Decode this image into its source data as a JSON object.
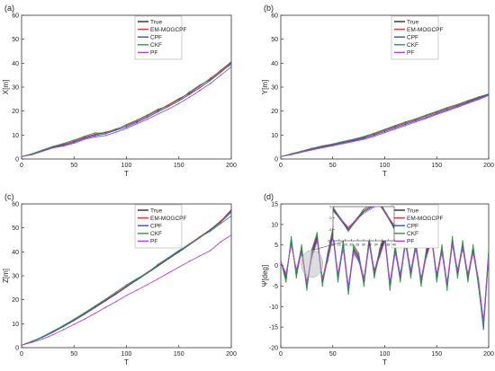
{
  "colors": {
    "True": "#2b2b2b",
    "EM-MOGCPF": "#e8303a",
    "CPF": "#2a55c8",
    "CKF": "#2e9a4a",
    "PF": "#b040e0"
  },
  "chart_data": [
    {
      "panel": "(a)",
      "type": "line",
      "xlabel": "T",
      "ylabel": "X[m]",
      "xlim": [
        0,
        200
      ],
      "ylim": [
        0,
        60
      ],
      "xticks": [
        0,
        50,
        100,
        150,
        200
      ],
      "yticks": [
        0,
        10,
        20,
        30,
        40,
        50,
        60
      ],
      "legend": "top-right",
      "x": [
        0,
        10,
        20,
        30,
        40,
        50,
        60,
        70,
        80,
        90,
        100,
        110,
        120,
        130,
        140,
        150,
        160,
        170,
        180,
        190,
        200
      ],
      "series": [
        {
          "name": "True",
          "values": [
            1,
            2,
            3.5,
            5,
            6,
            7.5,
            9,
            10.2,
            11,
            12.5,
            14,
            15.8,
            18,
            20.2,
            22.5,
            25,
            27.5,
            30.5,
            33.5,
            37,
            40.5
          ]
        },
        {
          "name": "EM-MOGCPF",
          "values": [
            1,
            2.1,
            3.6,
            5.1,
            6.2,
            7.4,
            9.1,
            10.3,
            11.2,
            12.3,
            14.1,
            15.9,
            17.9,
            20.4,
            22.6,
            25.2,
            27.3,
            30.4,
            33.7,
            36.8,
            40.2
          ]
        },
        {
          "name": "CPF",
          "values": [
            1,
            1.9,
            3.3,
            4.8,
            5.6,
            7,
            8.6,
            9.7,
            10.5,
            12,
            13.4,
            15.3,
            17.4,
            19.7,
            21.9,
            24.3,
            26.9,
            29.7,
            32.8,
            36.2,
            39.8
          ]
        },
        {
          "name": "CKF",
          "values": [
            1,
            2.2,
            3.8,
            5.3,
            6.5,
            7.9,
            9.5,
            10.9,
            10.8,
            12.2,
            14.4,
            16.3,
            18.4,
            20.8,
            22.1,
            24.4,
            28,
            30.9,
            33.1,
            36.4,
            39.5
          ]
        },
        {
          "name": "PF",
          "values": [
            1,
            1.8,
            3.2,
            4.6,
            5.4,
            6.6,
            8.2,
            9.2,
            9.8,
            11.2,
            12.8,
            14.7,
            16.6,
            18.8,
            20.8,
            23.2,
            25.8,
            28.6,
            31.5,
            35,
            38.5
          ]
        }
      ]
    },
    {
      "panel": "(b)",
      "type": "line",
      "xlabel": "T",
      "ylabel": "Y[m]",
      "xlim": [
        0,
        200
      ],
      "ylim": [
        0,
        60
      ],
      "xticks": [
        0,
        50,
        100,
        150,
        200
      ],
      "yticks": [
        0,
        10,
        20,
        30,
        40,
        50,
        60
      ],
      "legend": "top-right",
      "x": [
        0,
        10,
        20,
        30,
        40,
        50,
        60,
        70,
        80,
        90,
        100,
        110,
        120,
        130,
        140,
        150,
        160,
        170,
        180,
        190,
        200
      ],
      "series": [
        {
          "name": "True",
          "values": [
            1,
            2,
            3,
            4.2,
            5.2,
            6,
            7,
            8,
            9,
            10.5,
            12,
            13.5,
            15,
            16.5,
            18,
            19.5,
            21,
            22.5,
            24,
            25.5,
            27
          ]
        },
        {
          "name": "EM-MOGCPF",
          "values": [
            1,
            2.1,
            3.1,
            4.3,
            5.3,
            6.1,
            7.1,
            8.1,
            9.2,
            10.4,
            12.1,
            13.6,
            15.1,
            16.4,
            18.1,
            19.6,
            21.1,
            22.4,
            24.1,
            25.6,
            27.1
          ]
        },
        {
          "name": "CPF",
          "values": [
            1,
            1.9,
            2.9,
            4,
            4.9,
            5.8,
            6.8,
            7.7,
            8.6,
            10,
            11.5,
            13,
            14.5,
            16,
            17.4,
            19,
            20.5,
            22,
            23.6,
            25.2,
            26.8
          ]
        },
        {
          "name": "CKF",
          "values": [
            1,
            2.2,
            3.3,
            4.5,
            5.5,
            6.3,
            7.3,
            8.3,
            9.4,
            10.8,
            12.4,
            14,
            15.5,
            16.8,
            18.4,
            19.9,
            21.5,
            22.8,
            24.4,
            25.9,
            27.2
          ]
        },
        {
          "name": "PF",
          "values": [
            1,
            1.8,
            2.8,
            3.8,
            4.7,
            5.5,
            6.4,
            7.3,
            8.2,
            9.5,
            11,
            12.5,
            14,
            15.5,
            17,
            18.6,
            20.1,
            21.6,
            23.2,
            24.8,
            26.5
          ]
        }
      ]
    },
    {
      "panel": "(c)",
      "type": "line",
      "xlabel": "T",
      "ylabel": "Z[m]",
      "xlim": [
        0,
        200
      ],
      "ylim": [
        0,
        60
      ],
      "xticks": [
        0,
        50,
        100,
        150,
        200
      ],
      "yticks": [
        0,
        10,
        20,
        30,
        40,
        50,
        60
      ],
      "legend": "top-right",
      "x": [
        0,
        10,
        20,
        30,
        40,
        50,
        60,
        70,
        80,
        90,
        100,
        110,
        120,
        130,
        140,
        150,
        160,
        170,
        180,
        190,
        200
      ],
      "series": [
        {
          "name": "True",
          "values": [
            1,
            2.6,
            4.4,
            6.6,
            9,
            11.5,
            14.2,
            17,
            19.8,
            22.6,
            25.6,
            28.5,
            31.4,
            34.3,
            37.3,
            40.2,
            43.2,
            46.2,
            49.2,
            52.8,
            57.5
          ]
        },
        {
          "name": "EM-MOGCPF",
          "values": [
            1,
            2.7,
            4.5,
            6.7,
            9.1,
            11.6,
            14.3,
            17.1,
            19.9,
            22.7,
            25.7,
            28.6,
            31.5,
            34.4,
            37.4,
            40.3,
            43.3,
            46.3,
            49.3,
            52.9,
            57
          ]
        },
        {
          "name": "CPF",
          "values": [
            1,
            2.5,
            4.3,
            6.4,
            8.8,
            11.3,
            13.9,
            16.7,
            19.5,
            22.3,
            25.3,
            28.2,
            31.1,
            34,
            37,
            39.9,
            42.9,
            45.9,
            49,
            52.4,
            56.5
          ]
        },
        {
          "name": "CKF",
          "values": [
            1,
            2.6,
            4.6,
            6.9,
            9.3,
            11.9,
            14.6,
            17.4,
            20.2,
            23.2,
            26.2,
            28.8,
            31.2,
            34.8,
            37.6,
            40.6,
            43,
            46.1,
            48.6,
            51.8,
            55
          ]
        },
        {
          "name": "PF",
          "values": [
            1,
            2.2,
            3.6,
            5.4,
            7.5,
            9.7,
            11.9,
            14.3,
            16.8,
            19.2,
            21.8,
            24,
            26.3,
            28.7,
            31.2,
            33.6,
            36,
            38.3,
            40.5,
            44.2,
            47
          ]
        }
      ]
    },
    {
      "panel": "(d)",
      "type": "line",
      "xlabel": "T",
      "ylabel": "Ψ[deg]",
      "xlim": [
        0,
        200
      ],
      "ylim": [
        -20,
        15
      ],
      "xticks": [
        0,
        50,
        100,
        150,
        200
      ],
      "yticks": [
        -20,
        -15,
        -10,
        -5,
        0,
        5,
        10,
        15
      ],
      "legend": "top-right",
      "x": [
        0,
        5,
        10,
        15,
        20,
        25,
        30,
        35,
        40,
        45,
        50,
        55,
        60,
        65,
        70,
        75,
        80,
        85,
        90,
        95,
        100,
        105,
        110,
        115,
        120,
        125,
        130,
        135,
        140,
        145,
        150,
        155,
        160,
        165,
        170,
        175,
        180,
        185,
        190,
        195,
        200
      ],
      "series": [
        {
          "name": "True",
          "values": [
            1,
            -3,
            6,
            -2,
            4,
            -5,
            3,
            7,
            -4,
            2,
            8,
            -3,
            5,
            -6,
            4,
            2,
            -4,
            6,
            -2,
            3,
            7,
            -5,
            4,
            -3,
            6,
            -2,
            5,
            -4,
            3,
            7,
            -3,
            4,
            -5,
            6,
            -2,
            5,
            -3,
            4,
            -4,
            -15,
            3
          ]
        },
        {
          "name": "EM-MOGCPF",
          "values": [
            1,
            -2.5,
            5.5,
            -1.5,
            4.5,
            -4.5,
            3.5,
            7.5,
            -3.5,
            2.5,
            8.5,
            -2.5,
            5.5,
            -5.5,
            4.5,
            2.5,
            -3.5,
            6.5,
            -1.5,
            3.5,
            7.5,
            -4.5,
            4.5,
            -2.5,
            6.5,
            -1.5,
            5.5,
            -3.5,
            3.5,
            7.5,
            -2.5,
            4.5,
            -4.5,
            6.5,
            -1.5,
            5.5,
            -2.5,
            4.5,
            -3.5,
            -14,
            3.5
          ]
        },
        {
          "name": "CPF",
          "values": [
            1,
            -3.5,
            6.5,
            -2.5,
            3.5,
            -5.5,
            2.5,
            6.5,
            -4.5,
            1.5,
            7.5,
            -3.5,
            4.5,
            -6.5,
            3.5,
            1.5,
            -4.5,
            5.5,
            -2.5,
            2.5,
            6.5,
            -5.5,
            3.5,
            -3.5,
            5.5,
            -2.5,
            4.5,
            -4.5,
            2.5,
            6.5,
            -3.5,
            3.5,
            -5.5,
            5.5,
            -2.5,
            4.5,
            -3.5,
            3.5,
            -4.5,
            -15.5,
            2.5
          ]
        },
        {
          "name": "CKF",
          "values": [
            1,
            -4,
            7,
            -3,
            5,
            -6,
            4,
            8,
            -5,
            3,
            9,
            -4,
            6,
            -7,
            5,
            3,
            -5,
            7,
            -3,
            4,
            8,
            -6,
            5,
            -4,
            7,
            -3,
            6,
            -5,
            4,
            8,
            -4,
            5,
            -6,
            7,
            -3,
            6,
            -4,
            5,
            -5,
            -14.5,
            4
          ]
        },
        {
          "name": "PF",
          "values": [
            1,
            -2,
            5,
            -1,
            3,
            -4,
            2,
            6,
            -3,
            1,
            7,
            -2,
            4,
            -5,
            3,
            1,
            -3,
            5,
            -1,
            2,
            6,
            -4,
            3,
            -2,
            5,
            -1,
            4,
            -3,
            2,
            6,
            -2,
            3,
            -4,
            5,
            -1,
            4,
            -2,
            3,
            -3,
            -13.5,
            2
          ]
        }
      ],
      "inset": {
        "xlim": [
          20,
          40
        ],
        "ylim": [
          -10,
          5
        ],
        "xticks": [
          20,
          22,
          24,
          26,
          28,
          30,
          32,
          34,
          36,
          38,
          40
        ],
        "yticks": [
          -10,
          -5,
          0,
          5
        ]
      }
    }
  ]
}
